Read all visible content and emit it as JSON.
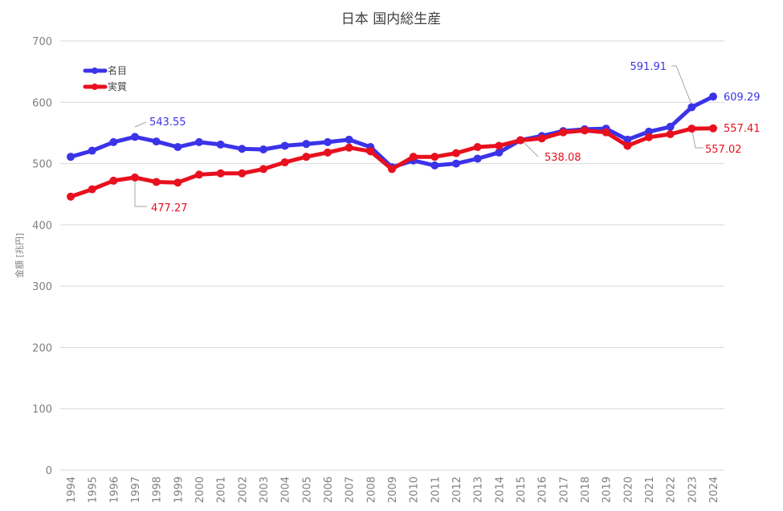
{
  "chart_data": {
    "type": "line",
    "title": "日本 国内総生産",
    "ylabel": "金額 [兆円]",
    "xlabel": "",
    "ylim": [
      0,
      700
    ],
    "yticks": [
      0,
      100,
      200,
      300,
      400,
      500,
      600,
      700
    ],
    "grid": true,
    "legend_position": "top-left",
    "categories": [
      "1994",
      "1995",
      "1996",
      "1997",
      "1998",
      "1999",
      "2000",
      "2001",
      "2002",
      "2003",
      "2004",
      "2005",
      "2006",
      "2007",
      "2008",
      "2009",
      "2010",
      "2011",
      "2012",
      "2013",
      "2014",
      "2015",
      "2016",
      "2017",
      "2018",
      "2019",
      "2020",
      "2021",
      "2022",
      "2023",
      "2024"
    ],
    "series": [
      {
        "name": "名目",
        "color": "#3b33e8",
        "values": [
          511,
          521,
          535,
          543.55,
          536,
          527,
          535,
          531,
          524,
          523,
          529,
          532,
          535,
          539,
          527,
          494,
          505,
          497,
          500,
          508,
          518,
          538.08,
          545,
          553,
          556,
          557,
          539,
          552,
          560,
          591.91,
          609.29
        ]
      },
      {
        "name": "実質",
        "color": "#e8101e",
        "values": [
          446,
          458,
          472,
          477.27,
          470,
          469,
          482,
          484,
          484,
          491,
          502,
          511,
          518,
          526,
          520,
          491,
          511,
          511,
          517,
          527,
          529,
          538,
          541,
          551,
          554,
          551,
          529,
          543,
          548,
          557.02,
          557.41
        ]
      }
    ],
    "annotations": [
      {
        "text": "543.55",
        "series": 0,
        "index": 3,
        "color": "#3b33e8"
      },
      {
        "text": "477.27",
        "series": 1,
        "index": 3,
        "color": "#e8101e"
      },
      {
        "text": "538.08",
        "series": 1,
        "index": 21,
        "color": "#e8101e"
      },
      {
        "text": "591.91",
        "series": 0,
        "index": 29,
        "color": "#3b33e8"
      },
      {
        "text": "609.29",
        "series": 0,
        "index": 30,
        "color": "#3b33e8"
      },
      {
        "text": "557.41",
        "series": 1,
        "index": 30,
        "color": "#e8101e"
      },
      {
        "text": "557.02",
        "series": 1,
        "index": 29,
        "color": "#e8101e"
      }
    ]
  }
}
